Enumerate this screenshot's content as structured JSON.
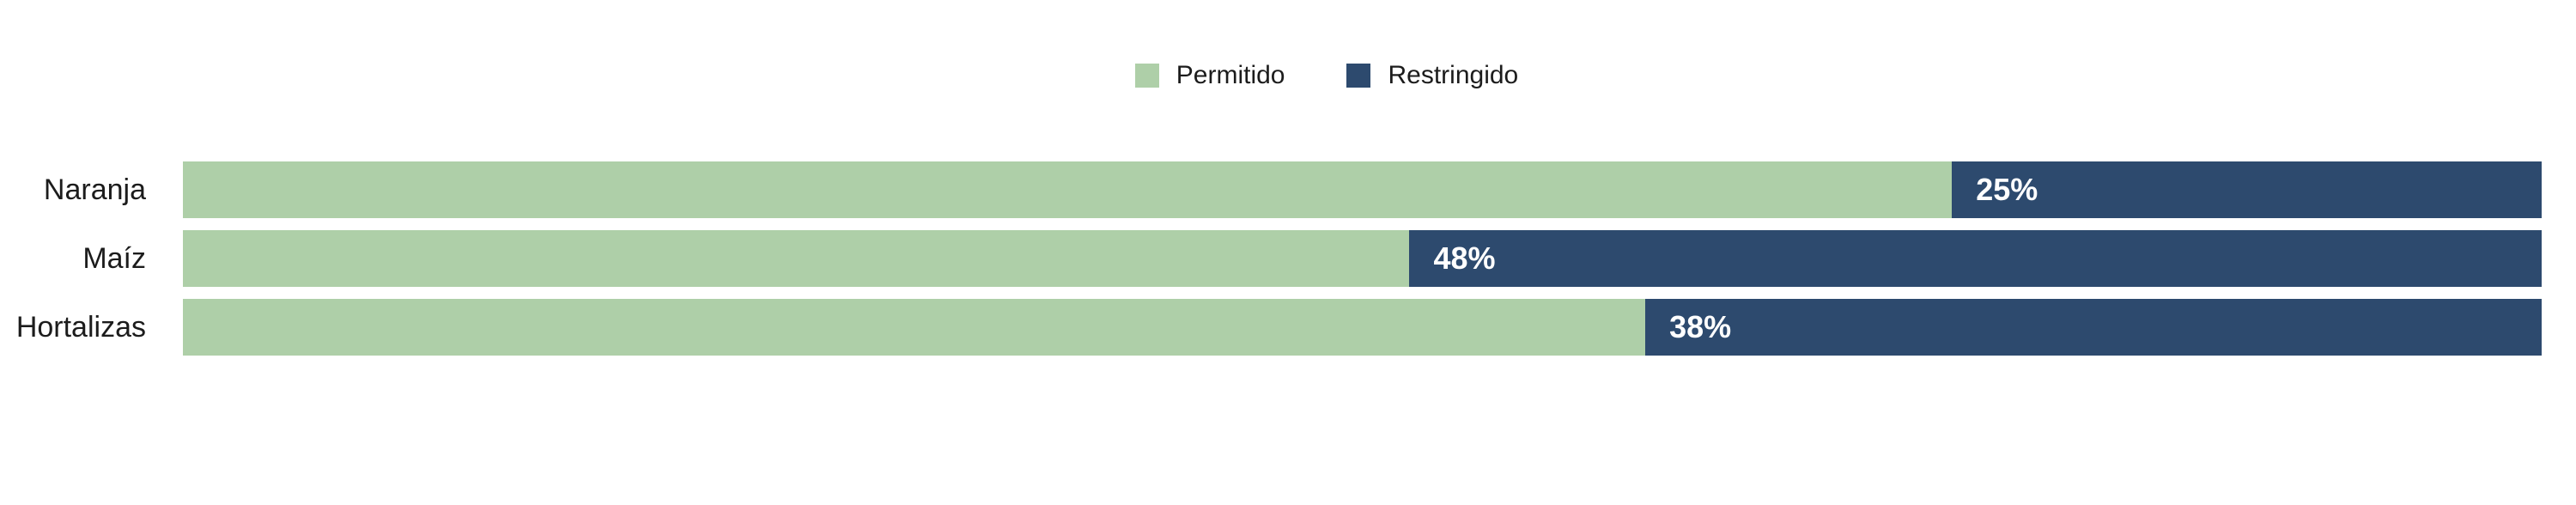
{
  "chart_data": {
    "type": "bar",
    "orientation": "horizontal",
    "stacked": true,
    "title": "",
    "categories": [
      "Naranja",
      "Maíz",
      "Hortalizas"
    ],
    "series": [
      {
        "name": "Permitido",
        "values": [
          75,
          52,
          62
        ]
      },
      {
        "name": "Restringido",
        "values": [
          25,
          48,
          38
        ]
      }
    ],
    "data_labels": {
      "restringido": [
        "25%",
        "48%",
        "38%"
      ]
    },
    "legend_position": "top-center",
    "xlim": [
      0,
      100
    ],
    "grid": false
  },
  "colors": {
    "permitido": "#aecfa8",
    "restringido": "#2d4a6e",
    "category_text": "#1c1c1c",
    "value_text": "#ffffff",
    "background": "#ffffff"
  }
}
